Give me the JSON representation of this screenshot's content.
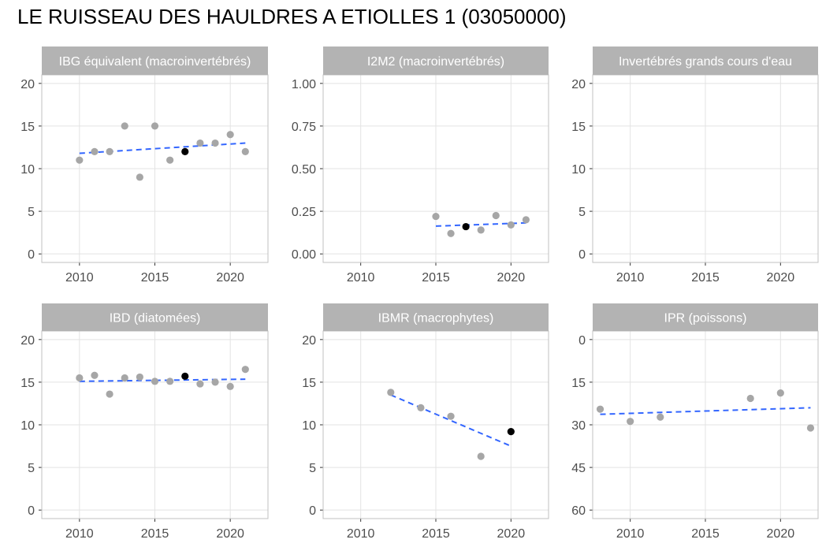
{
  "title": "LE RUISSEAU DES HAULDRES A ETIOLLES 1 (03050000)",
  "colors": {
    "strip": "#b3b3b3",
    "point": "#a6a6a6",
    "highlight": "#000000",
    "trend": "#3366ff",
    "grid": "#e3e3e3",
    "border": "#c0c0c0",
    "tick_text": "#4d4d4d"
  },
  "chart_data": [
    {
      "type": "scatter",
      "title": "IBG équivalent (macroinvertébrés)",
      "xlim": [
        2007.5,
        2022.5
      ],
      "ylim": [
        -1,
        21
      ],
      "reversed": false,
      "xticks": [
        2010,
        2015,
        2020
      ],
      "yticks": [
        0,
        5,
        10,
        15,
        20
      ],
      "ytick_labels": [
        "0",
        "5",
        "10",
        "15",
        "20"
      ],
      "points": [
        {
          "x": 2010,
          "y": 11
        },
        {
          "x": 2011,
          "y": 12
        },
        {
          "x": 2012,
          "y": 12
        },
        {
          "x": 2013,
          "y": 15
        },
        {
          "x": 2014,
          "y": 9
        },
        {
          "x": 2015,
          "y": 15
        },
        {
          "x": 2016,
          "y": 11
        },
        {
          "x": 2017,
          "y": 12,
          "highlight": true
        },
        {
          "x": 2018,
          "y": 13
        },
        {
          "x": 2019,
          "y": 13
        },
        {
          "x": 2020,
          "y": 14
        },
        {
          "x": 2021,
          "y": 12
        }
      ],
      "trend": [
        [
          2010,
          11.8
        ],
        [
          2021,
          13.0
        ]
      ]
    },
    {
      "type": "scatter",
      "title": "I2M2 (macroinvertébrés)",
      "xlim": [
        2007.5,
        2022.5
      ],
      "ylim": [
        -0.05,
        1.05
      ],
      "reversed": false,
      "xticks": [
        2010,
        2015,
        2020
      ],
      "yticks": [
        0,
        0.25,
        0.5,
        0.75,
        1.0
      ],
      "ytick_labels": [
        "0.00",
        "0.25",
        "0.50",
        "0.75",
        "1.00"
      ],
      "points": [
        {
          "x": 2015,
          "y": 0.22
        },
        {
          "x": 2016,
          "y": 0.12
        },
        {
          "x": 2017,
          "y": 0.16,
          "highlight": true
        },
        {
          "x": 2018,
          "y": 0.14
        },
        {
          "x": 2019,
          "y": 0.225
        },
        {
          "x": 2020,
          "y": 0.17
        },
        {
          "x": 2021,
          "y": 0.2
        }
      ],
      "trend": [
        [
          2015,
          0.163
        ],
        [
          2021,
          0.182
        ]
      ]
    },
    {
      "type": "scatter",
      "title": "Invertébrés grands cours d'eau",
      "xlim": [
        2007.5,
        2022.5
      ],
      "ylim": [
        -1,
        21
      ],
      "reversed": false,
      "xticks": [
        2010,
        2015,
        2020
      ],
      "yticks": [
        0,
        5,
        10,
        15,
        20
      ],
      "ytick_labels": [
        "0",
        "5",
        "10",
        "15",
        "20"
      ],
      "points": [],
      "trend": null
    },
    {
      "type": "scatter",
      "title": "IBD (diatomées)",
      "xlim": [
        2007.5,
        2022.5
      ],
      "ylim": [
        -1,
        21
      ],
      "reversed": false,
      "xticks": [
        2010,
        2015,
        2020
      ],
      "yticks": [
        0,
        5,
        10,
        15,
        20
      ],
      "ytick_labels": [
        "0",
        "5",
        "10",
        "15",
        "20"
      ],
      "points": [
        {
          "x": 2010,
          "y": 15.5
        },
        {
          "x": 2011,
          "y": 15.8
        },
        {
          "x": 2012,
          "y": 13.6
        },
        {
          "x": 2013,
          "y": 15.5
        },
        {
          "x": 2014,
          "y": 15.6
        },
        {
          "x": 2015,
          "y": 15.1
        },
        {
          "x": 2016,
          "y": 15.1
        },
        {
          "x": 2017,
          "y": 15.7,
          "highlight": true
        },
        {
          "x": 2018,
          "y": 14.8
        },
        {
          "x": 2019,
          "y": 15.0
        },
        {
          "x": 2020,
          "y": 14.5
        },
        {
          "x": 2021,
          "y": 16.5
        }
      ],
      "trend": [
        [
          2010,
          15.1
        ],
        [
          2021,
          15.35
        ]
      ]
    },
    {
      "type": "scatter",
      "title": "IBMR (macrophytes)",
      "xlim": [
        2007.5,
        2022.5
      ],
      "ylim": [
        -1,
        21
      ],
      "reversed": false,
      "xticks": [
        2010,
        2015,
        2020
      ],
      "yticks": [
        0,
        5,
        10,
        15,
        20
      ],
      "ytick_labels": [
        "0",
        "5",
        "10",
        "15",
        "20"
      ],
      "points": [
        {
          "x": 2012,
          "y": 13.8
        },
        {
          "x": 2014,
          "y": 12.0
        },
        {
          "x": 2016,
          "y": 11.0
        },
        {
          "x": 2018,
          "y": 6.3
        },
        {
          "x": 2020,
          "y": 9.2,
          "highlight": true
        }
      ],
      "trend": [
        [
          2012,
          13.5
        ],
        [
          2020,
          7.5
        ]
      ]
    },
    {
      "type": "scatter",
      "title": "IPR (poissons)",
      "xlim": [
        2007.5,
        2022.5
      ],
      "ylim": [
        -3,
        63
      ],
      "reversed": true,
      "xticks": [
        2010,
        2015,
        2020
      ],
      "yticks": [
        0,
        15,
        30,
        45,
        60
      ],
      "ytick_labels": [
        "0",
        "15",
        "30",
        "45",
        "60"
      ],
      "points": [
        {
          "x": 2008,
          "y": 24.5
        },
        {
          "x": 2010,
          "y": 28.8
        },
        {
          "x": 2012,
          "y": 27.3
        },
        {
          "x": 2018,
          "y": 20.7
        },
        {
          "x": 2020,
          "y": 18.8
        },
        {
          "x": 2022,
          "y": 31.1
        }
      ],
      "trend": [
        [
          2008,
          26.3
        ],
        [
          2022,
          24.0
        ]
      ]
    }
  ]
}
